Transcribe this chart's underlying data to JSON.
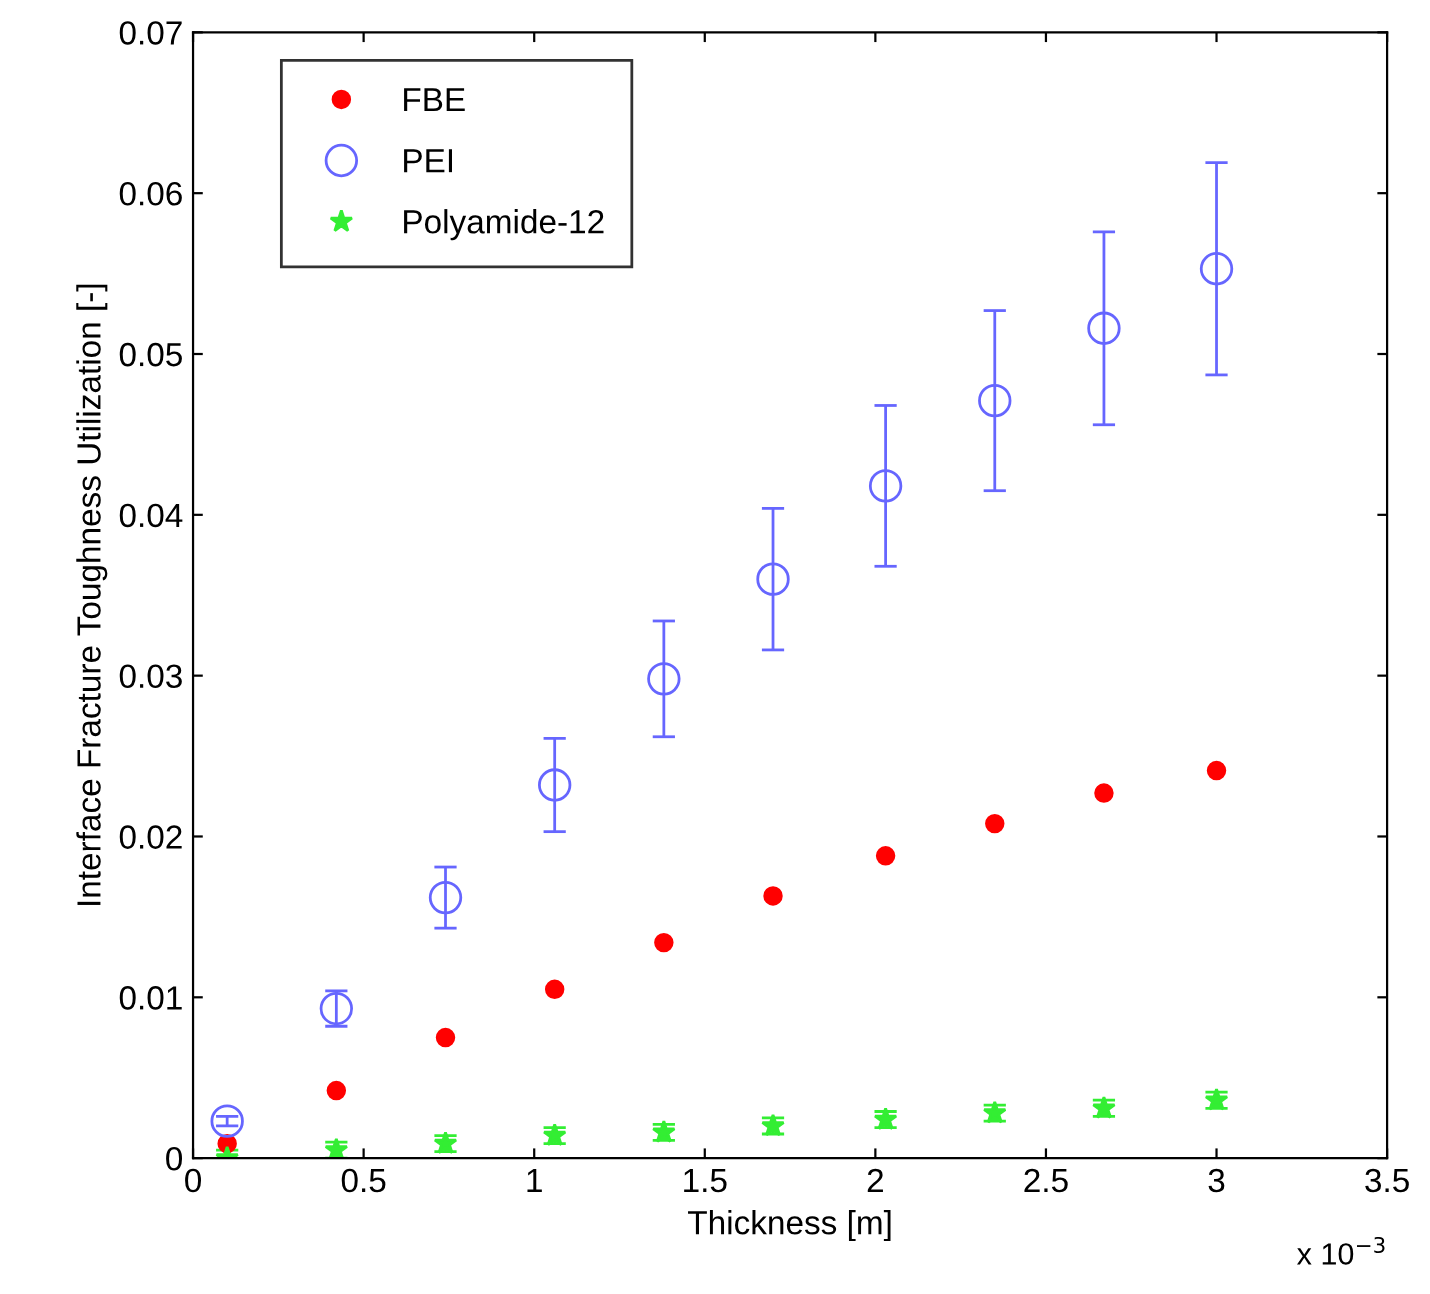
{
  "chart_data": {
    "type": "scatter",
    "xlabel": "Thickness [m]",
    "ylabel": "Interface Fracture Toughness Utilization [-]",
    "x": [
      0.1,
      0.42,
      0.74,
      1.06,
      1.38,
      1.7,
      2.03,
      2.35,
      2.67,
      3.0
    ],
    "series": [
      {
        "name": "FBE",
        "color": "#ff0000",
        "marker": "circle",
        "values": [
          0.0009,
          0.0042,
          0.0075,
          0.0105,
          0.0134,
          0.0163,
          0.0188,
          0.0208,
          0.0227,
          0.0241
        ]
      },
      {
        "name": "PEI",
        "color": "#6666ff",
        "marker": "circle",
        "values": [
          0.0023,
          0.0093,
          0.0162,
          0.0232,
          0.0298,
          0.036,
          0.0418,
          0.0471,
          0.0516,
          0.0553
        ],
        "errors": [
          0.0003,
          0.0011,
          0.0019,
          0.0029,
          0.0036,
          0.0044,
          0.005,
          0.0056,
          0.006,
          0.0066
        ]
      },
      {
        "name": "Polyamide-12",
        "color": "#33ee33",
        "marker": "star",
        "values": [
          0.0,
          0.0005,
          0.0009,
          0.0014,
          0.0016,
          0.002,
          0.0024,
          0.0028,
          0.0031,
          0.0036
        ],
        "errors": [
          0.0005,
          0.0005,
          0.0005,
          0.0005,
          0.0005,
          0.0005,
          0.0005,
          0.0005,
          0.0005,
          0.0005
        ]
      }
    ],
    "xlim": [
      0,
      3.5
    ],
    "xticks": [
      0,
      0.5,
      1,
      1.5,
      2,
      2.5,
      3,
      3.5
    ],
    "ylim": [
      0,
      0.07
    ],
    "yticks": [
      0,
      0.01,
      0.02,
      0.03,
      0.04,
      0.05,
      0.06,
      0.07
    ],
    "annotations": [
      "x 10$^{−3}$"
    ],
    "grid": false,
    "legend": "top left"
  }
}
